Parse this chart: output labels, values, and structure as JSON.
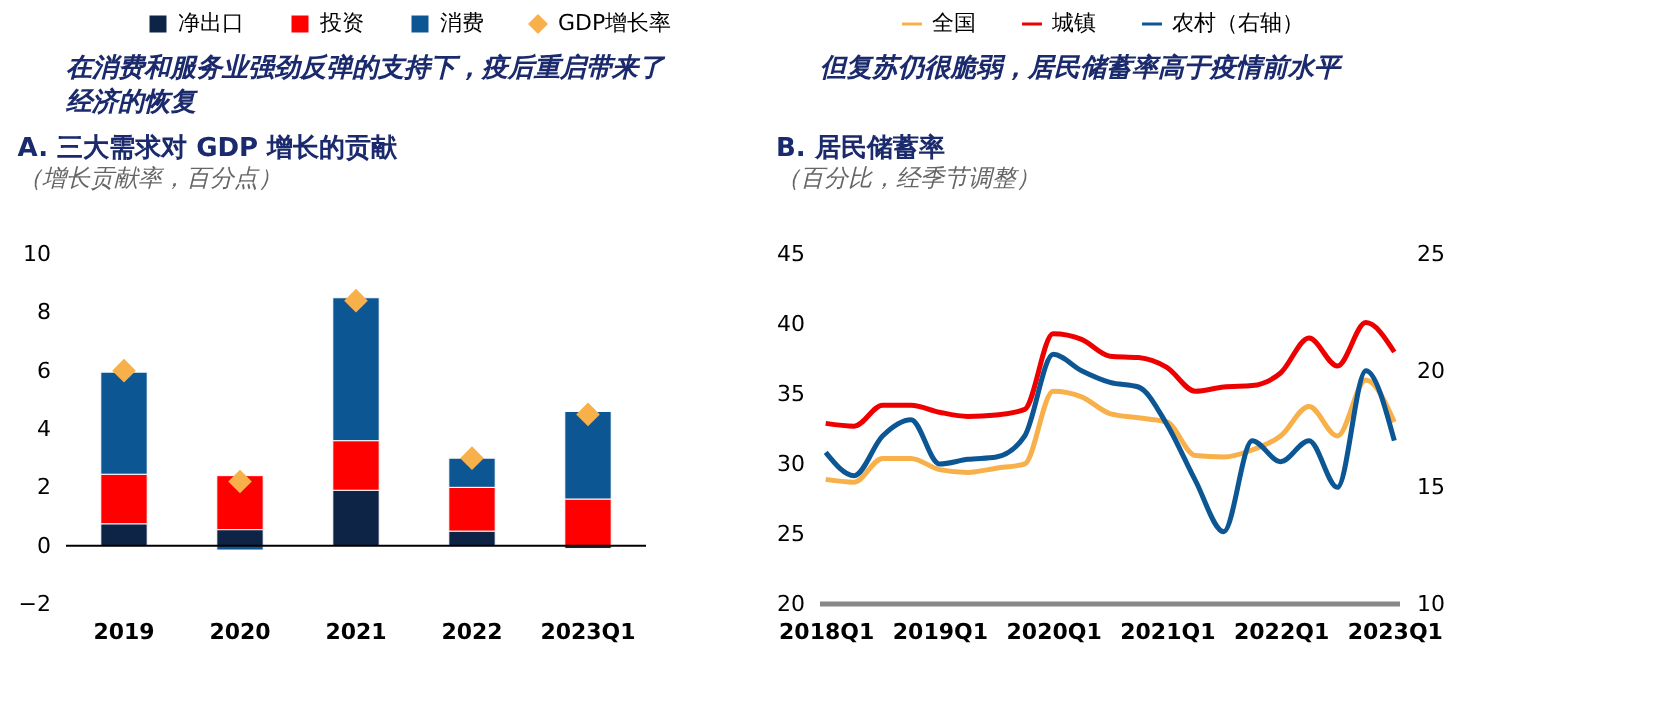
{
  "chart_data": [
    {
      "type": "bar",
      "annotations": [
        "在消费和服务业强劲反弹的支持下，疫后重启带来了经济的恢复"
      ],
      "title": "A. 三大需求对 GDP 增长的贡献",
      "subtitle": "（增长贡献率，百分点）",
      "categories": [
        "2019",
        "2020",
        "2021",
        "2022",
        "2023Q1"
      ],
      "stacked": true,
      "marker": "diamond",
      "series": [
        {
          "name": "净出口",
          "color": "#0d2447",
          "values": [
            0.75,
            0.55,
            1.9,
            0.5,
            -0.1
          ]
        },
        {
          "name": "投资",
          "color": "#ff0000",
          "values": [
            1.7,
            1.85,
            1.7,
            1.5,
            1.6
          ]
        },
        {
          "name": "消费",
          "color": "#0d5694",
          "values": [
            3.5,
            -0.15,
            4.9,
            1.0,
            3.0
          ]
        },
        {
          "name": "GDP增长率",
          "type": "scatter",
          "color": "#f8b04a",
          "values": [
            6.0,
            2.2,
            8.4,
            3.0,
            4.5
          ]
        }
      ],
      "ref_lines": [
        {
          "axis": "y",
          "value": 0,
          "color": "#000000"
        }
      ],
      "ylim": [
        -2,
        10
      ],
      "yticks": [
        -2,
        0,
        2,
        4,
        6,
        8,
        10
      ],
      "legend": "top",
      "grid": false
    },
    {
      "type": "line",
      "annotations": [
        "但复苏仍很脆弱，居民储蓄率高于疫情前水平"
      ],
      "title": "B. 居民储蓄率",
      "subtitle": "（百分比，经季节调整）",
      "categories": [
        "2018Q1",
        null,
        null,
        null,
        "2019Q1",
        null,
        null,
        null,
        "2020Q1",
        null,
        null,
        null,
        "2021Q1",
        null,
        null,
        null,
        "2022Q1",
        null,
        null,
        null,
        "2023Q1"
      ],
      "series": [
        {
          "name": "全国",
          "color": "#f8b04a",
          "values": [
            28.9,
            28.7,
            30.4,
            30.4,
            29.6,
            29.4,
            29.7,
            30.0,
            35.2,
            34.8,
            33.6,
            33.3,
            33.0,
            30.6,
            30.5,
            31.0,
            32.0,
            34.1,
            32.0,
            36.0,
            33.0
          ]
        },
        {
          "name": "城镇",
          "color": "#ee0000",
          "values": [
            32.9,
            32.7,
            34.2,
            34.2,
            33.7,
            33.4,
            33.5,
            33.9,
            39.3,
            38.9,
            37.7,
            37.6,
            36.9,
            35.2,
            35.5,
            35.6,
            36.5,
            39.0,
            37.0,
            40.1,
            38.0
          ]
        },
        {
          "name": "农村（右轴）",
          "color": "#0d5694",
          "axis": "y2",
          "values": [
            16.5,
            15.5,
            17.2,
            17.9,
            16.0,
            16.2,
            16.3,
            17.2,
            20.7,
            20.0,
            19.5,
            19.3,
            17.7,
            15.3,
            13.1,
            17.0,
            16.1,
            17.0,
            15.0,
            20.0,
            17.0
          ]
        }
      ],
      "ylim": [
        20,
        45
      ],
      "yticks": [
        20,
        25,
        30,
        35,
        40,
        45
      ],
      "y2lim": [
        10,
        25
      ],
      "y2ticks": [
        10,
        15,
        20,
        25
      ],
      "legend": "top",
      "grid": false
    }
  ]
}
